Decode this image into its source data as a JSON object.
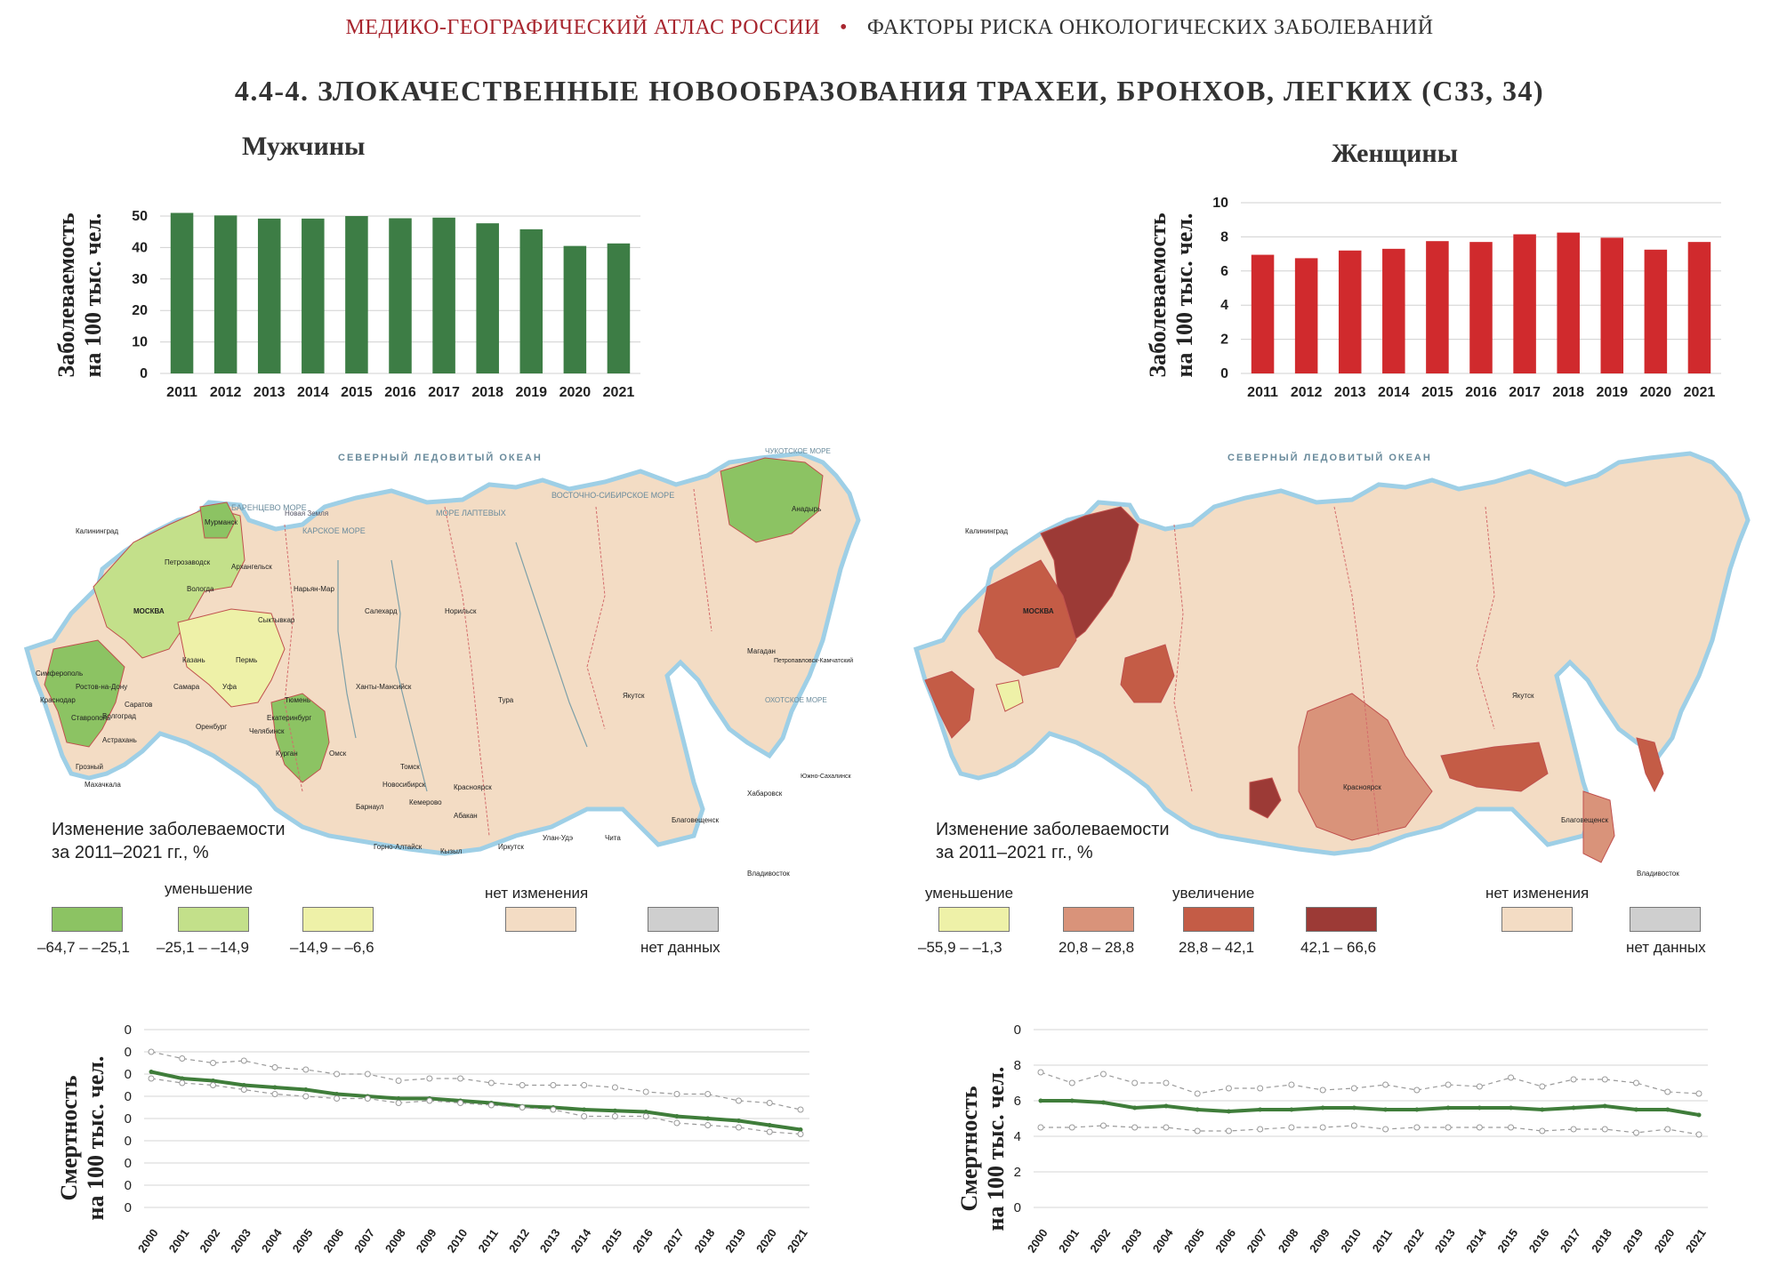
{
  "header": {
    "atlas": "МЕДИКО-ГЕОГРАФИЧЕСКИЙ АТЛАС РОССИИ",
    "separator": "•",
    "section": "ФАКТОРЫ РИСКА ОНКОЛОГИЧЕСКИХ ЗАБОЛЕВАНИЙ"
  },
  "title": "4.4-4. ЗЛОКАЧЕСТВЕННЫЕ НОВООБРАЗОВАНИЯ ТРАХЕИ, БРОНХОВ, ЛЕГКИХ (С33, 34)",
  "men": {
    "label": "Мужчины"
  },
  "women": {
    "label": "Женщины"
  },
  "incidence_axis_label": [
    "Заболеваемость",
    "на 100 тыс. чел."
  ],
  "mortality_axis_label": [
    "Смертность",
    "на 100 тыс. чел."
  ],
  "colors": {
    "men_bar": "#3d7d45",
    "women_bar": "#d02a2d",
    "mortality_line": "#3f7d3a",
    "range_line": "#9a9a9a",
    "map_land": "#f3dcc4",
    "sea": "#ffffff",
    "coast": "#b9dced"
  },
  "chart_data": [
    {
      "type": "bar",
      "name_ref": "men_incidence",
      "categories": [
        "2011",
        "2012",
        "2013",
        "2014",
        "2015",
        "2016",
        "2017",
        "2018",
        "2019",
        "2020",
        "2021"
      ],
      "values": [
        51.0,
        50.2,
        49.2,
        49.2,
        50.0,
        49.3,
        49.5,
        47.7,
        45.8,
        40.5,
        41.3
      ],
      "ylim": [
        0,
        50
      ],
      "yticks": [
        "0",
        "10",
        "20",
        "30",
        "40",
        "50"
      ],
      "grid": true
    },
    {
      "type": "bar",
      "name_ref": "women_incidence",
      "categories": [
        "2011",
        "2012",
        "2013",
        "2014",
        "2015",
        "2016",
        "2017",
        "2018",
        "2019",
        "2020",
        "2021"
      ],
      "values": [
        6.95,
        6.75,
        7.2,
        7.3,
        7.75,
        7.7,
        8.15,
        8.25,
        7.95,
        7.25,
        7.7
      ],
      "ylim": [
        0,
        10
      ],
      "yticks": [
        "0",
        "2",
        "4",
        "6",
        "8",
        "10"
      ],
      "grid": true
    },
    {
      "type": "line",
      "name_ref": "men_mortality",
      "x": [
        "2000",
        "2001",
        "2002",
        "2003",
        "2004",
        "2005",
        "2006",
        "2007",
        "2008",
        "2009",
        "2010",
        "2011",
        "2012",
        "2013",
        "2014",
        "2015",
        "2016",
        "2017",
        "2018",
        "2019",
        "2020",
        "2021"
      ],
      "series": [
        {
          "role": "main",
          "values": [
            61,
            58,
            57,
            55,
            54,
            53,
            51,
            50,
            49,
            49,
            48,
            47,
            45.5,
            45,
            44,
            43.5,
            43,
            41,
            40,
            39,
            37,
            35
          ]
        },
        {
          "role": "upper",
          "values": [
            70,
            67,
            65,
            66,
            63,
            62,
            60,
            60,
            57,
            58,
            58,
            56,
            55,
            55,
            55,
            54,
            52,
            51,
            51,
            48,
            47,
            44
          ]
        },
        {
          "role": "lower",
          "values": [
            58,
            56,
            55,
            53,
            51,
            50,
            49,
            49,
            47,
            48,
            47,
            46,
            45,
            44,
            41,
            41,
            41,
            38,
            37,
            36,
            34,
            33
          ]
        }
      ],
      "ylim": [
        0,
        80
      ],
      "yticks": [
        "0",
        "10",
        "20",
        "30",
        "40",
        "50",
        "60",
        "70",
        "80"
      ],
      "grid": true
    },
    {
      "type": "line",
      "name_ref": "women_mortality",
      "x": [
        "2000",
        "2001",
        "2002",
        "2003",
        "2004",
        "2005",
        "2006",
        "2007",
        "2008",
        "2009",
        "2010",
        "2011",
        "2012",
        "2013",
        "2014",
        "2015",
        "2016",
        "2017",
        "2018",
        "2019",
        "2020",
        "2021"
      ],
      "series": [
        {
          "role": "main",
          "values": [
            6.0,
            6.0,
            5.9,
            5.6,
            5.7,
            5.5,
            5.4,
            5.5,
            5.5,
            5.6,
            5.6,
            5.5,
            5.5,
            5.6,
            5.6,
            5.6,
            5.5,
            5.6,
            5.7,
            5.5,
            5.5,
            5.2
          ]
        },
        {
          "role": "upper",
          "values": [
            7.6,
            7.0,
            7.5,
            7.0,
            7.0,
            6.4,
            6.7,
            6.7,
            6.9,
            6.6,
            6.7,
            6.9,
            6.6,
            6.9,
            6.8,
            7.3,
            6.8,
            7.2,
            7.2,
            7.0,
            6.5,
            6.4
          ]
        },
        {
          "role": "lower",
          "values": [
            4.5,
            4.5,
            4.6,
            4.5,
            4.5,
            4.3,
            4.3,
            4.4,
            4.5,
            4.5,
            4.6,
            4.4,
            4.5,
            4.5,
            4.5,
            4.5,
            4.3,
            4.4,
            4.4,
            4.2,
            4.4,
            4.1
          ]
        }
      ],
      "ylim": [
        0,
        10
      ],
      "yticks": [
        "0",
        "2",
        "4",
        "6",
        "8",
        "10"
      ],
      "grid": true
    }
  ],
  "map_men": {
    "legend_title": [
      "Изменение заболеваемости",
      "за 2011–2021 гг., %"
    ],
    "group_decrease": "уменьшение",
    "group_nochange": "нет изменения",
    "classes": [
      {
        "label": "–64,7 – –25,1",
        "color": "#8cc363"
      },
      {
        "label": "–25,1 – –14,9",
        "color": "#c3e08a"
      },
      {
        "label": "–14,9 – –6,6",
        "color": "#eef1a8"
      },
      {
        "label": "",
        "color": "#f3dcc4"
      },
      {
        "label": "нет данных",
        "color": "#cfcfcf"
      }
    ],
    "labels": [
      {
        "text": "СЕВЕРНЫЙ ЛЕДОВИТЫЙ ОКЕАН",
        "kind": "ocean"
      },
      {
        "text": "БАРЕНЦЕВО МОРЕ",
        "kind": "sea"
      },
      {
        "text": "КАРСКОЕ МОРЕ",
        "kind": "sea"
      },
      {
        "text": "МОРЕ ЛАПТЕВЫХ",
        "kind": "sea"
      },
      {
        "text": "ВОСТОЧНО-СИБИРСКОЕ МОРЕ",
        "kind": "sea"
      },
      {
        "text": "ЧУКОТСКОЕ МОРЕ",
        "kind": "sea"
      },
      {
        "text": "ОХОТСКОЕ МОРЕ",
        "kind": "sea"
      },
      {
        "text": "Новая Земля",
        "kind": "island"
      },
      {
        "text": "Калининград",
        "kind": "city"
      },
      {
        "text": "Мурманск",
        "kind": "city"
      },
      {
        "text": "Архангельск",
        "kind": "city"
      },
      {
        "text": "Петрозаводск",
        "kind": "city"
      },
      {
        "text": "Вологда",
        "kind": "city"
      },
      {
        "text": "МОСКВА",
        "kind": "city"
      },
      {
        "text": "Сыктывкар",
        "kind": "city"
      },
      {
        "text": "Нарьян-Мар",
        "kind": "city"
      },
      {
        "text": "Салехард",
        "kind": "city"
      },
      {
        "text": "Норильск",
        "kind": "city"
      },
      {
        "text": "Анадырь",
        "kind": "city"
      },
      {
        "text": "Магадан",
        "kind": "city"
      },
      {
        "text": "Петропавловск-Камчатский",
        "kind": "city"
      },
      {
        "text": "Якутск",
        "kind": "city"
      },
      {
        "text": "Тура",
        "kind": "city"
      },
      {
        "text": "Ханты-Мансийск",
        "kind": "city"
      },
      {
        "text": "Екатеринбург",
        "kind": "city"
      },
      {
        "text": "Тюмень",
        "kind": "city"
      },
      {
        "text": "Омск",
        "kind": "city"
      },
      {
        "text": "Томск",
        "kind": "city"
      },
      {
        "text": "Новосибирск",
        "kind": "city"
      },
      {
        "text": "Кемерово",
        "kind": "city"
      },
      {
        "text": "Красноярск",
        "kind": "city"
      },
      {
        "text": "Иркутск",
        "kind": "city"
      },
      {
        "text": "Улан-Удэ",
        "kind": "city"
      },
      {
        "text": "Чита",
        "kind": "city"
      },
      {
        "text": "Благовещенск",
        "kind": "city"
      },
      {
        "text": "Хабаровск",
        "kind": "city"
      },
      {
        "text": "Владивосток",
        "kind": "city"
      },
      {
        "text": "Южно-Сахалинск",
        "kind": "city"
      },
      {
        "text": "Ставрополь",
        "kind": "city"
      },
      {
        "text": "Махачкала",
        "kind": "city"
      },
      {
        "text": "Астрахань",
        "kind": "city"
      },
      {
        "text": "Краснодар",
        "kind": "city"
      },
      {
        "text": "Ростов-на-Дону",
        "kind": "city"
      },
      {
        "text": "Самара",
        "kind": "city"
      },
      {
        "text": "Казань",
        "kind": "city"
      },
      {
        "text": "Уфа",
        "kind": "city"
      },
      {
        "text": "Оренбург",
        "kind": "city"
      },
      {
        "text": "Пермь",
        "kind": "city"
      },
      {
        "text": "Челябинск",
        "kind": "city"
      },
      {
        "text": "Курган",
        "kind": "city"
      },
      {
        "text": "Барнаул",
        "kind": "city"
      },
      {
        "text": "Горно-Алтайск",
        "kind": "city"
      },
      {
        "text": "Кызыл",
        "kind": "city"
      },
      {
        "text": "Абакан",
        "kind": "city"
      },
      {
        "text": "Симферополь",
        "kind": "city"
      },
      {
        "text": "Грозный",
        "kind": "city"
      },
      {
        "text": "Саратов",
        "kind": "city"
      },
      {
        "text": "Волгоград",
        "kind": "city"
      }
    ]
  },
  "map_women": {
    "legend_title": [
      "Изменение заболеваемости",
      "за 2011–2021 гг., %"
    ],
    "group_decrease": "уменьшение",
    "group_increase": "увеличение",
    "group_nochange": "нет изменения",
    "classes": [
      {
        "label": "–55,9 – –1,3",
        "color": "#eef1a8"
      },
      {
        "label": "20,8 – 28,8",
        "color": "#d9937a"
      },
      {
        "label": "28,8 – 42,1",
        "color": "#c45c46"
      },
      {
        "label": "42,1 – 66,6",
        "color": "#9c3a36"
      },
      {
        "label": "",
        "color": "#f3dcc4"
      },
      {
        "label": "нет данных",
        "color": "#cfcfcf"
      }
    ]
  }
}
